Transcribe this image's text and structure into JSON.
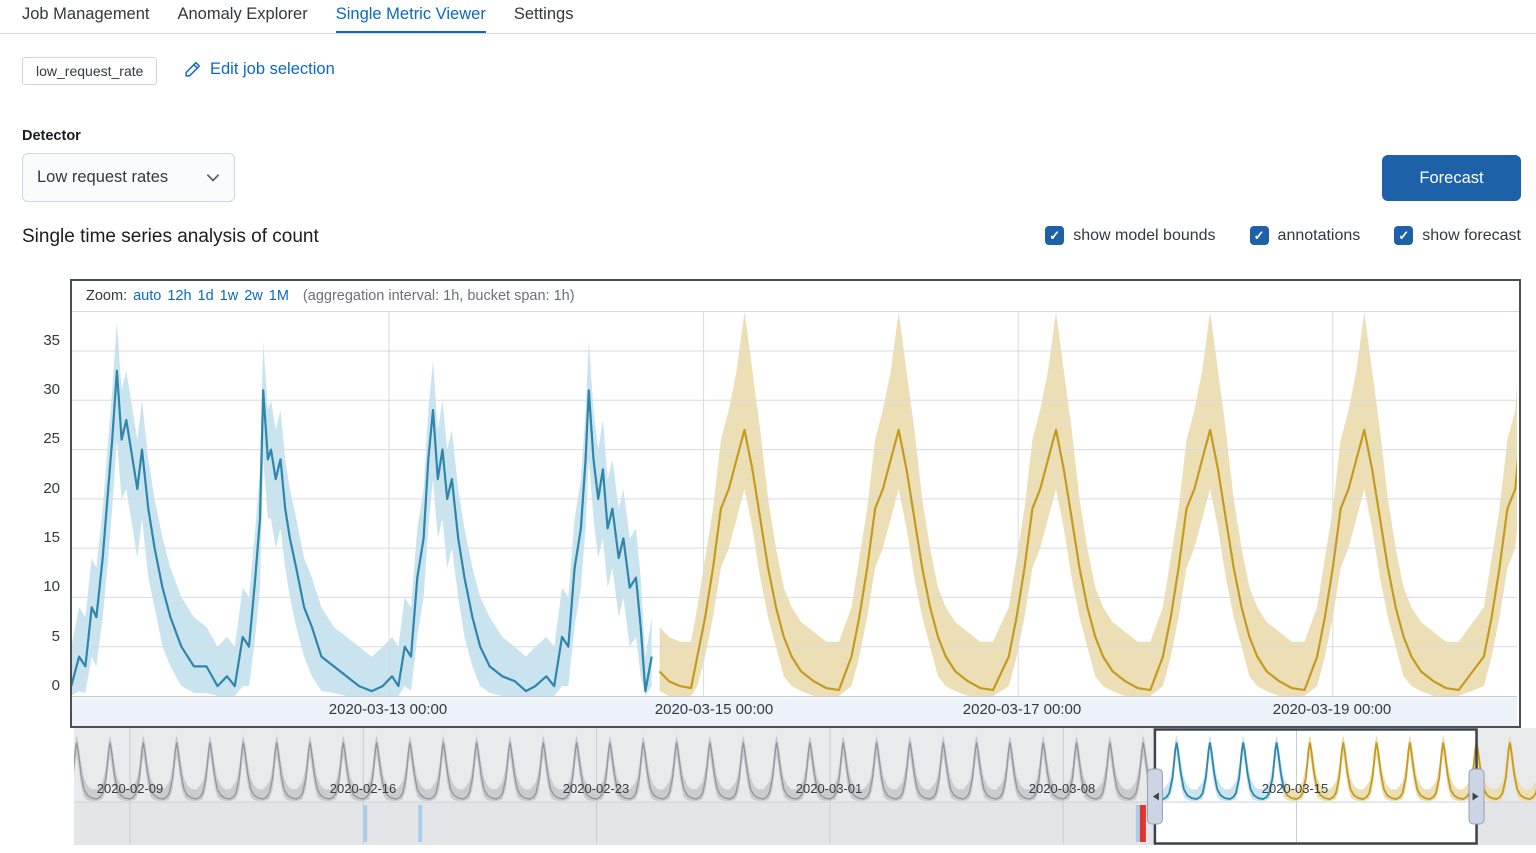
{
  "tabs": {
    "items": [
      {
        "label": "Job Management",
        "active": false
      },
      {
        "label": "Anomaly Explorer",
        "active": false
      },
      {
        "label": "Single Metric Viewer",
        "active": true
      },
      {
        "label": "Settings",
        "active": false
      }
    ]
  },
  "job_badge": "low_request_rate",
  "edit_link_label": "Edit job selection",
  "detector": {
    "label": "Detector",
    "value": "Low request rates"
  },
  "forecast_button_label": "Forecast",
  "heading": "Single time series analysis of count",
  "toggles": [
    {
      "label": "show model bounds",
      "checked": true
    },
    {
      "label": "annotations",
      "checked": true
    },
    {
      "label": "show forecast",
      "checked": true
    }
  ],
  "check_glyph": "✓",
  "zoom_bar": {
    "prefix": "Zoom:",
    "links": [
      "auto",
      "12h",
      "1d",
      "1w",
      "2w",
      "1M"
    ],
    "suffix": "(aggregation interval: 1h, bucket span: 1h)"
  },
  "colors": {
    "link_blue": "#0b68c4",
    "primary_button": "#1d61a9",
    "actual_line": "#2e86ab",
    "actual_band": "#c9e4ef",
    "forecast_line": "#c49b20",
    "forecast_band": "#ecdfb6",
    "context_gray_line": "#94979d",
    "context_gray_band": "#cbccd0",
    "context_bg": "#e9eaec",
    "swimlane_bg": "#e4e5e8",
    "anomaly_low": "#a9cdea",
    "anomaly_critical": "#df352c",
    "gridline": "#d8dade",
    "axis_line": "#c3c8d1",
    "axis_strip_bg": "#edf2f8",
    "selection_border": "#3d424c",
    "handle_fill": "#cdd4e3",
    "handle_border": "#959eb0"
  },
  "chart_data": {
    "type": "line",
    "title": "Single time series analysis of count",
    "x_axis": {
      "labels": [
        "2020-03-13 00:00",
        "2020-03-15 00:00",
        "2020-03-17 00:00",
        "2020-03-19 00:00"
      ],
      "label_days": [
        0,
        2,
        4,
        6
      ],
      "domain_days": [
        -2.016,
        7.185
      ]
    },
    "y_axis": {
      "ticks": [
        0,
        5,
        10,
        15,
        20,
        25,
        30,
        35
      ],
      "max_display": 39
    },
    "grid": true,
    "series": [
      {
        "name": "actual with model bounds",
        "kind": "actual",
        "points": [
          [
            -2.02,
            1,
            0,
            5
          ],
          [
            -1.97,
            4,
            0.5,
            9
          ],
          [
            -1.93,
            3,
            0.3,
            8
          ],
          [
            -1.89,
            9,
            4,
            14
          ],
          [
            -1.86,
            8,
            3,
            13
          ],
          [
            -1.82,
            14,
            8,
            19
          ],
          [
            -1.79,
            20,
            13,
            25
          ],
          [
            -1.76,
            26,
            19,
            31
          ],
          [
            -1.73,
            33,
            26,
            38
          ],
          [
            -1.7,
            26,
            20,
            31
          ],
          [
            -1.67,
            28,
            21,
            33
          ],
          [
            -1.63,
            24,
            17,
            29
          ],
          [
            -1.6,
            21,
            14,
            26
          ],
          [
            -1.57,
            25,
            18,
            30
          ],
          [
            -1.53,
            19,
            12,
            24
          ],
          [
            -1.49,
            15,
            9,
            20
          ],
          [
            -1.44,
            11,
            5,
            16
          ],
          [
            -1.39,
            8,
            3,
            13
          ],
          [
            -1.32,
            5,
            1,
            10
          ],
          [
            -1.24,
            3,
            0.3,
            8
          ],
          [
            -1.16,
            3,
            0.3,
            7
          ],
          [
            -1.09,
            1,
            0,
            5
          ],
          [
            -1.03,
            2,
            0,
            6
          ],
          [
            -0.98,
            1,
            0,
            5
          ],
          [
            -0.93,
            6,
            1,
            11
          ],
          [
            -0.89,
            5,
            1,
            10
          ],
          [
            -0.85,
            12,
            6,
            17
          ],
          [
            -0.82,
            18,
            11,
            23
          ],
          [
            -0.8,
            31,
            24,
            36
          ],
          [
            -0.77,
            24,
            18,
            29
          ],
          [
            -0.75,
            25,
            18,
            30
          ],
          [
            -0.72,
            22,
            15,
            27
          ],
          [
            -0.69,
            24,
            17,
            29
          ],
          [
            -0.66,
            19,
            13,
            24
          ],
          [
            -0.63,
            16,
            10,
            21
          ],
          [
            -0.59,
            13,
            7,
            18
          ],
          [
            -0.54,
            9,
            4,
            14
          ],
          [
            -0.49,
            7,
            2,
            12
          ],
          [
            -0.43,
            4,
            0.5,
            9
          ],
          [
            -0.35,
            3,
            0.3,
            7
          ],
          [
            -0.27,
            2,
            0,
            6
          ],
          [
            -0.19,
            1,
            0,
            5
          ],
          [
            -0.11,
            0.5,
            0,
            4
          ],
          [
            -0.04,
            1,
            0,
            5
          ],
          [
            0.02,
            2,
            0,
            6
          ],
          [
            0.06,
            1,
            0,
            5
          ],
          [
            0.1,
            5,
            1,
            10
          ],
          [
            0.14,
            4,
            0.5,
            9
          ],
          [
            0.18,
            12,
            6,
            17
          ],
          [
            0.22,
            16,
            10,
            21
          ],
          [
            0.25,
            24,
            17,
            29
          ],
          [
            0.28,
            29,
            22,
            34
          ],
          [
            0.31,
            22,
            16,
            27
          ],
          [
            0.34,
            25,
            18,
            30
          ],
          [
            0.37,
            20,
            13,
            25
          ],
          [
            0.4,
            22,
            15,
            27
          ],
          [
            0.44,
            16,
            10,
            21
          ],
          [
            0.48,
            12,
            6,
            17
          ],
          [
            0.53,
            8,
            3,
            13
          ],
          [
            0.58,
            5,
            1,
            10
          ],
          [
            0.64,
            3,
            0.3,
            8
          ],
          [
            0.72,
            2,
            0,
            6
          ],
          [
            0.8,
            1.5,
            0,
            5
          ],
          [
            0.87,
            0.5,
            0,
            4
          ],
          [
            0.93,
            1,
            0,
            5
          ],
          [
            1.0,
            2,
            0,
            6
          ],
          [
            1.05,
            1,
            0,
            5
          ],
          [
            1.1,
            6,
            1,
            11
          ],
          [
            1.14,
            5,
            1,
            10
          ],
          [
            1.18,
            13,
            7,
            18
          ],
          [
            1.22,
            17,
            11,
            22
          ],
          [
            1.25,
            24,
            17,
            29
          ],
          [
            1.27,
            31,
            24,
            36
          ],
          [
            1.3,
            24,
            18,
            29
          ],
          [
            1.33,
            20,
            14,
            25
          ],
          [
            1.36,
            23,
            16,
            28
          ],
          [
            1.39,
            17,
            11,
            22
          ],
          [
            1.42,
            19,
            13,
            24
          ],
          [
            1.46,
            14,
            8,
            19
          ],
          [
            1.49,
            16,
            10,
            21
          ],
          [
            1.53,
            11,
            5,
            16
          ],
          [
            1.57,
            12,
            6,
            17
          ],
          [
            1.6,
            7,
            2,
            12
          ],
          [
            1.63,
            0.5,
            0,
            4
          ],
          [
            1.67,
            4,
            1,
            8
          ]
        ]
      },
      {
        "name": "forecast with bounds",
        "kind": "forecast",
        "start_points": [
          [
            1.72,
            2.5,
            0.5,
            7
          ],
          [
            1.78,
            1.5,
            0,
            6
          ],
          [
            1.85,
            1,
            0,
            5.5
          ],
          [
            1.92,
            0.8,
            0,
            5.5
          ]
        ],
        "peak_days": [
          2.26,
          3.24,
          4.24,
          5.22,
          6.2,
          7.26
        ],
        "cycle_template": [
          [
            -0.3,
            4,
            1,
            9
          ],
          [
            -0.25,
            8,
            4,
            14
          ],
          [
            -0.2,
            13,
            8,
            19
          ],
          [
            -0.15,
            19,
            13,
            26
          ],
          [
            -0.1,
            21,
            15,
            29
          ],
          [
            -0.05,
            24,
            18,
            33
          ],
          [
            0,
            27,
            21,
            39
          ],
          [
            0.05,
            23,
            17,
            33
          ],
          [
            0.1,
            18,
            12,
            27
          ],
          [
            0.15,
            13,
            8,
            20
          ],
          [
            0.2,
            9,
            5,
            15
          ],
          [
            0.25,
            6,
            2,
            11
          ],
          [
            0.3,
            4,
            1,
            9
          ],
          [
            0.36,
            2.5,
            0.5,
            7.5
          ],
          [
            0.44,
            1.5,
            0,
            6.5
          ],
          [
            0.52,
            0.8,
            0,
            5.5
          ],
          [
            0.6,
            0.6,
            0,
            5.5
          ]
        ],
        "tail_points": [
          [
            7.185,
            25.5,
            19,
            35
          ]
        ],
        "clip_day": 7.2
      }
    ]
  },
  "context_chart": {
    "x_labels": [
      "2020-02-09",
      "2020-02-16",
      "2020-02-23",
      "2020-03-01",
      "2020-03-08",
      "2020-03-15"
    ],
    "label_week_index": [
      0,
      1,
      2,
      3,
      4,
      5
    ],
    "domain_days": [
      -1.68,
      42.2
    ],
    "selection_days": [
      30.75,
      40.4
    ],
    "forecast_boundary_day": 34.65,
    "value_max": 35,
    "day_shape": [
      [
        0,
        1,
        0,
        6
      ],
      [
        0.1,
        2,
        0.3,
        8
      ],
      [
        0.18,
        4,
        1,
        10
      ],
      [
        0.28,
        12,
        6,
        18
      ],
      [
        0.36,
        26,
        19,
        31
      ],
      [
        0.4,
        30,
        23,
        34
      ],
      [
        0.45,
        25,
        18,
        30
      ],
      [
        0.53,
        14,
        8,
        20
      ],
      [
        0.62,
        6,
        2,
        12
      ],
      [
        0.72,
        3,
        0.5,
        8
      ],
      [
        0.85,
        1.5,
        0,
        6
      ],
      [
        1,
        1,
        0,
        6
      ]
    ],
    "anomaly_marks": [
      {
        "day": 7.06,
        "severity": "low",
        "width": 4
      },
      {
        "day": 8.71,
        "severity": "low",
        "width": 4
      },
      {
        "day": 30.24,
        "severity": "low",
        "width": 4
      },
      {
        "day": 30.39,
        "severity": "critical",
        "width": 6
      }
    ]
  }
}
